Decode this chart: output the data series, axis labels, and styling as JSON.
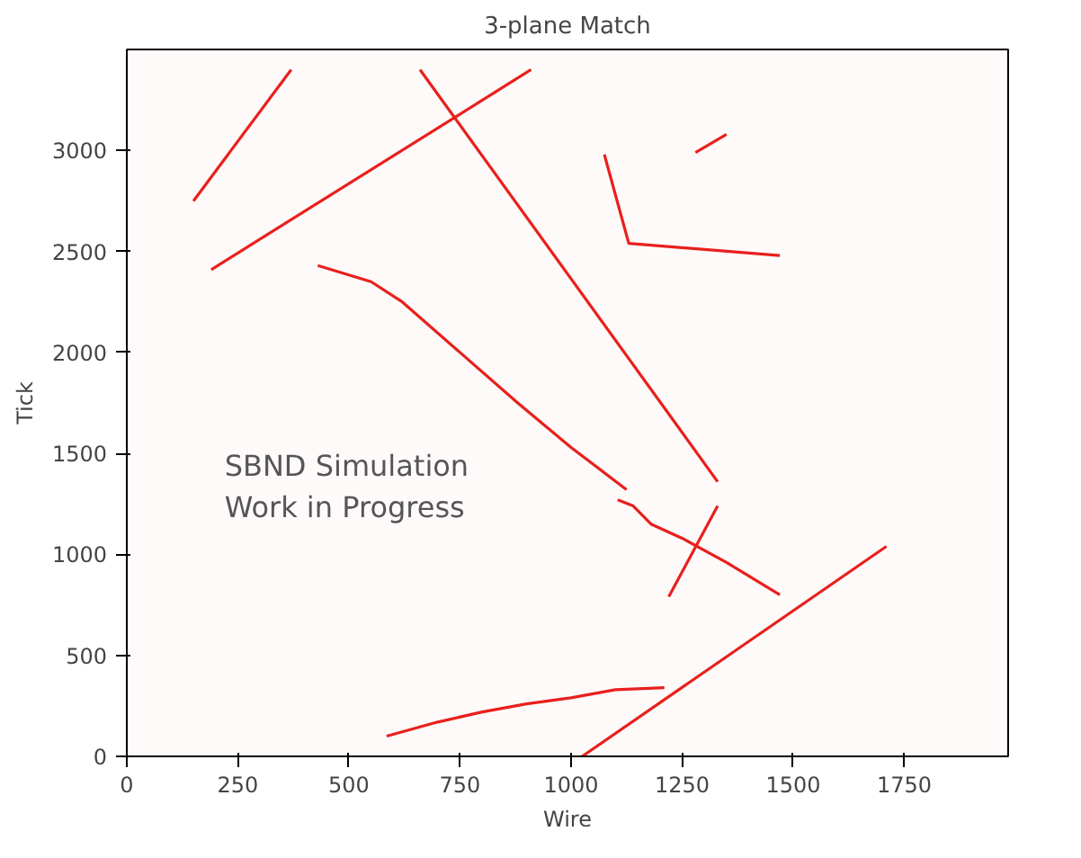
{
  "chart_data": {
    "type": "line",
    "title": "3-plane Match",
    "xlabel": "Wire",
    "ylabel": "Tick",
    "xlim": [
      0,
      1984
    ],
    "ylim": [
      0,
      3500
    ],
    "xticks": [
      0,
      250,
      500,
      750,
      1000,
      1250,
      1500,
      1750
    ],
    "yticks": [
      0,
      500,
      1000,
      1500,
      2000,
      2500,
      3000
    ],
    "grid": false,
    "marker": "none",
    "line_style": "solid",
    "annotations": [
      "SBND Simulation\nWork in Progress"
    ],
    "series": [
      {
        "color": "#e8201c",
        "x": [
          150,
          370
        ],
        "values": [
          2750,
          3400
        ]
      },
      {
        "color": "#e8201c",
        "x": [
          190,
          910
        ],
        "values": [
          2410,
          3400
        ]
      },
      {
        "color": "#e8201c",
        "x": [
          660,
          1330
        ],
        "values": [
          3400,
          1360
        ]
      },
      {
        "color": "#e8201c",
        "x": [
          1075,
          1130,
          1470
        ],
        "values": [
          2980,
          2540,
          2480
        ]
      },
      {
        "color": "#e8201c",
        "x": [
          1280,
          1350
        ],
        "values": [
          2990,
          3080
        ]
      },
      {
        "color": "#e8201c",
        "x": [
          430,
          550,
          620,
          750,
          880,
          1000,
          1125
        ],
        "values": [
          2430,
          2350,
          2250,
          2000,
          1750,
          1530,
          1320
        ]
      },
      {
        "color": "#e8201c",
        "x": [
          1105,
          1140,
          1180,
          1250,
          1350,
          1470
        ],
        "values": [
          1270,
          1240,
          1150,
          1080,
          960,
          800
        ]
      },
      {
        "color": "#e8201c",
        "x": [
          1220,
          1330
        ],
        "values": [
          790,
          1240
        ]
      },
      {
        "color": "#e8201c",
        "x": [
          585,
          700,
          800,
          900,
          1000,
          1100,
          1210
        ],
        "values": [
          100,
          170,
          220,
          260,
          290,
          330,
          340
        ]
      },
      {
        "color": "#e8201c",
        "x": [
          1025,
          1710
        ],
        "values": [
          0,
          1040
        ]
      }
    ]
  }
}
